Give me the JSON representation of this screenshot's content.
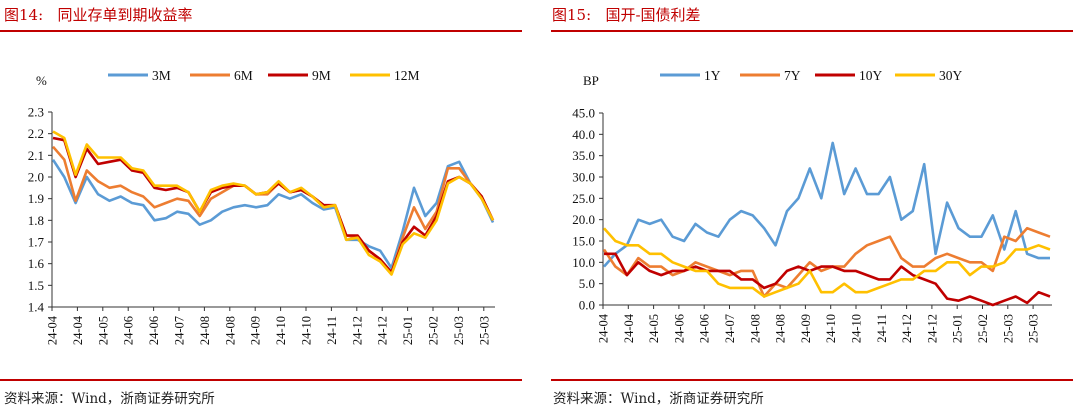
{
  "left": {
    "figure_title": "图14:   同业存单到期收益率",
    "source": "资料来源：Wind，浙商证券研究所"
  },
  "right": {
    "figure_title": "图15:   国开-国债利差",
    "source": "资料来源：Wind，浙商证券研究所"
  },
  "chart_data": [
    {
      "type": "line",
      "title": "同业存单到期收益率",
      "ylabel": "%",
      "ylim": [
        1.4,
        2.3
      ],
      "ytick_step": 0.1,
      "ytick_decimals": 1,
      "grid": false,
      "legend": "top",
      "x_tick_labels": [
        "24-04",
        "24-04",
        "24-05",
        "24-06",
        "24-06",
        "24-07",
        "24-08",
        "24-08",
        "24-09",
        "24-10",
        "24-10",
        "24-11",
        "24-12",
        "24-12",
        "25-01",
        "25-02",
        "25-03",
        "25-03"
      ],
      "x_range": [
        "2024-04",
        "2025-03"
      ],
      "series": [
        {
          "name": "3M",
          "color": "#5b9bd5",
          "values": [
            2.08,
            2.0,
            1.88,
            2.0,
            1.92,
            1.89,
            1.91,
            1.88,
            1.87,
            1.8,
            1.81,
            1.84,
            1.83,
            1.78,
            1.8,
            1.84,
            1.86,
            1.87,
            1.86,
            1.87,
            1.92,
            1.9,
            1.92,
            1.88,
            1.85,
            1.86,
            1.71,
            1.71,
            1.68,
            1.66,
            1.58,
            1.75,
            1.95,
            1.82,
            1.88,
            2.05,
            2.07,
            1.97,
            1.9,
            1.79
          ]
        },
        {
          "name": "6M",
          "color": "#ed7d31",
          "values": [
            2.14,
            2.08,
            1.89,
            2.03,
            1.98,
            1.95,
            1.96,
            1.93,
            1.91,
            1.86,
            1.88,
            1.9,
            1.89,
            1.82,
            1.9,
            1.93,
            1.96,
            1.96,
            1.92,
            1.92,
            1.97,
            1.93,
            1.94,
            1.91,
            1.86,
            1.87,
            1.73,
            1.72,
            1.66,
            1.62,
            1.56,
            1.72,
            1.86,
            1.76,
            1.84,
            2.04,
            2.04,
            1.97,
            1.91,
            1.8
          ]
        },
        {
          "name": "9M",
          "color": "#c00000",
          "values": [
            2.18,
            2.17,
            2.0,
            2.13,
            2.06,
            2.07,
            2.08,
            2.03,
            2.02,
            1.95,
            1.94,
            1.95,
            1.93,
            1.84,
            1.93,
            1.95,
            1.96,
            1.96,
            1.92,
            1.93,
            1.97,
            1.93,
            1.94,
            1.91,
            1.87,
            1.87,
            1.73,
            1.73,
            1.66,
            1.62,
            1.56,
            1.7,
            1.77,
            1.73,
            1.82,
            1.98,
            2.0,
            1.97,
            1.91,
            1.8
          ]
        },
        {
          "name": "12M",
          "color": "#ffc000",
          "values": [
            2.21,
            2.18,
            2.01,
            2.15,
            2.09,
            2.09,
            2.09,
            2.04,
            2.03,
            1.96,
            1.96,
            1.96,
            1.93,
            1.84,
            1.94,
            1.96,
            1.97,
            1.96,
            1.92,
            1.93,
            1.98,
            1.93,
            1.95,
            1.91,
            1.86,
            1.87,
            1.71,
            1.72,
            1.64,
            1.61,
            1.55,
            1.69,
            1.74,
            1.72,
            1.8,
            1.97,
            2.0,
            1.97,
            1.9,
            1.8
          ]
        }
      ]
    },
    {
      "type": "line",
      "title": "国开-国债利差",
      "ylabel": "BP",
      "ylim": [
        0,
        45
      ],
      "ytick_step": 5,
      "ytick_decimals": 1,
      "grid": false,
      "legend": "top",
      "x_tick_labels": [
        "24-04",
        "24-04",
        "24-05",
        "24-06",
        "24-06",
        "24-07",
        "24-08",
        "24-08",
        "24-09",
        "24-10",
        "24-10",
        "24-11",
        "24-12",
        "24-12",
        "25-01",
        "25-02",
        "25-03",
        "25-03"
      ],
      "x_range": [
        "2024-04",
        "2025-03"
      ],
      "series": [
        {
          "name": "1Y",
          "color": "#5b9bd5",
          "values": [
            9,
            12,
            14,
            20,
            19,
            20,
            16,
            15,
            19,
            17,
            16,
            20,
            22,
            21,
            18,
            14,
            22,
            25,
            32,
            25,
            38,
            26,
            32,
            26,
            26,
            30,
            20,
            22,
            33,
            12,
            24,
            18,
            16,
            16,
            21,
            13,
            22,
            12,
            11,
            11
          ]
        },
        {
          "name": "7Y",
          "color": "#ed7d31",
          "values": [
            13,
            9,
            7,
            11,
            9,
            9,
            7,
            8,
            10,
            9,
            8,
            7,
            8,
            8,
            2,
            5,
            4,
            7,
            10,
            8,
            9,
            9,
            12,
            14,
            15,
            16,
            11,
            9,
            9,
            11,
            12,
            11,
            10,
            10,
            8,
            16,
            15,
            18,
            17,
            16
          ]
        },
        {
          "name": "10Y",
          "color": "#c00000",
          "values": [
            12,
            12,
            7,
            10,
            8,
            7,
            8,
            8,
            9,
            8,
            8,
            8,
            6,
            6,
            4,
            5,
            8,
            9,
            8,
            9,
            9,
            8,
            8,
            7,
            6,
            6,
            9,
            7,
            6,
            5,
            1.5,
            1,
            2,
            1,
            0,
            1,
            2,
            0.5,
            3,
            2
          ]
        },
        {
          "name": "30Y",
          "color": "#ffc000",
          "values": [
            18,
            15,
            14,
            14,
            12,
            12,
            10,
            9,
            8,
            8,
            5,
            4,
            4,
            4,
            2,
            3,
            4,
            5,
            8,
            3,
            3,
            5,
            3,
            3,
            4,
            5,
            6,
            6,
            8,
            8,
            10,
            10,
            7,
            9,
            9,
            10,
            13,
            13,
            14,
            13
          ]
        }
      ]
    }
  ]
}
